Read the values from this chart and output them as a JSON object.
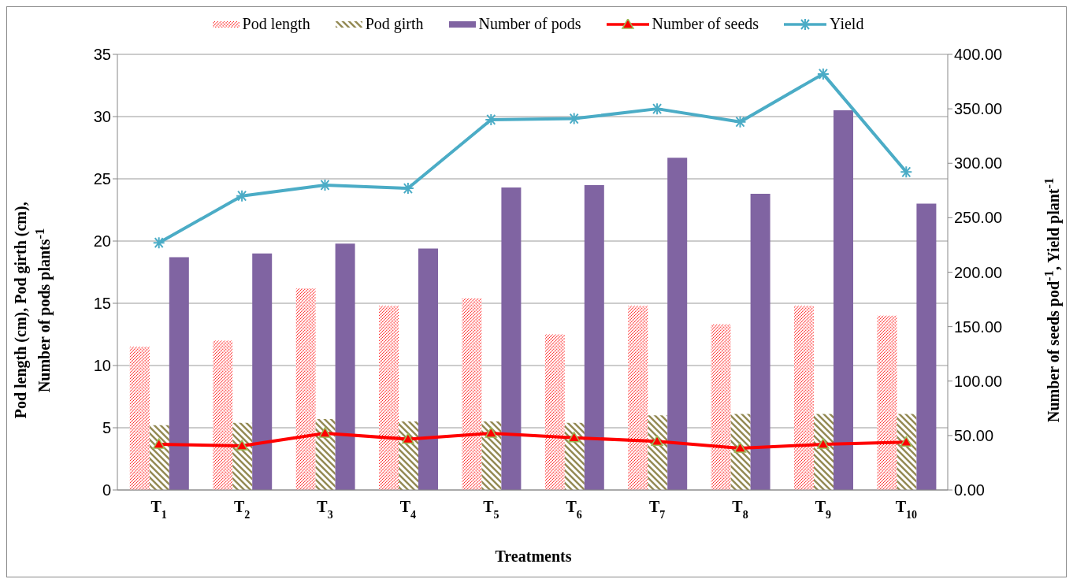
{
  "chart_data": {
    "type": "bar",
    "xlabel": "Treatments",
    "ylabel": "Pod length (cm), Pod girth (cm), Number of pods plants$^{-1}$",
    "y2label": "Number of seeds pod$^{-1}$, Yield plant$^{-1}$",
    "categories": [
      "T$_{1}$",
      "T$_{2}$",
      "T$_{3}$",
      "T$_{4}$",
      "T$_{5}$",
      "T$_{6}$",
      "T$_{7}$",
      "T$_{8}$",
      "T$_{9}$",
      "T$_{10}$"
    ],
    "series": [
      {
        "name": "Pod length",
        "color": "#ff0000",
        "values": [
          11.5,
          12.0,
          16.2,
          14.8,
          15.4,
          12.5,
          14.8,
          13.3,
          14.8,
          14.0
        ]
      },
      {
        "name": "Pod girth",
        "color": "#948a54",
        "values": [
          5.2,
          5.4,
          5.7,
          5.5,
          5.5,
          5.4,
          6.0,
          6.1,
          6.1,
          6.1
        ]
      },
      {
        "name": "Number of pods",
        "color": "#8064a2",
        "values": [
          18.7,
          19.0,
          19.8,
          19.4,
          24.3,
          24.5,
          26.7,
          23.8,
          30.5,
          23.0
        ]
      },
      {
        "name": "Number of seeds",
        "type": "line",
        "axis": "y2",
        "color": "#ff0000",
        "marker": "triangle",
        "values": [
          41.9,
          40.5,
          52.1,
          46.7,
          52.1,
          48.0,
          44.6,
          38.4,
          41.9,
          43.9
        ]
      },
      {
        "name": "Yield",
        "type": "line",
        "axis": "y2",
        "color": "#4bacc6",
        "marker": "cross",
        "values": [
          227,
          270,
          280,
          277,
          340,
          341,
          350,
          338,
          382,
          292
        ]
      }
    ],
    "ylim": [
      0,
      35
    ],
    "yticks": [
      0,
      5,
      10,
      15,
      20,
      25,
      30,
      35
    ],
    "y2lim": [
      0,
      400
    ],
    "y2ticks": [
      {
        "value": 0,
        "label": "0.00"
      },
      {
        "value": 50,
        "label": "50.00"
      },
      {
        "value": 100,
        "label": "100.00"
      },
      {
        "value": 150,
        "label": "150.00"
      },
      {
        "value": 200,
        "label": "200.00"
      },
      {
        "value": 250,
        "label": "250.00"
      },
      {
        "value": 300,
        "label": "300.00"
      },
      {
        "value": 350,
        "label": "350.00"
      },
      {
        "value": 400,
        "label": "400.00"
      }
    ],
    "grid": "y",
    "legend": "top"
  }
}
